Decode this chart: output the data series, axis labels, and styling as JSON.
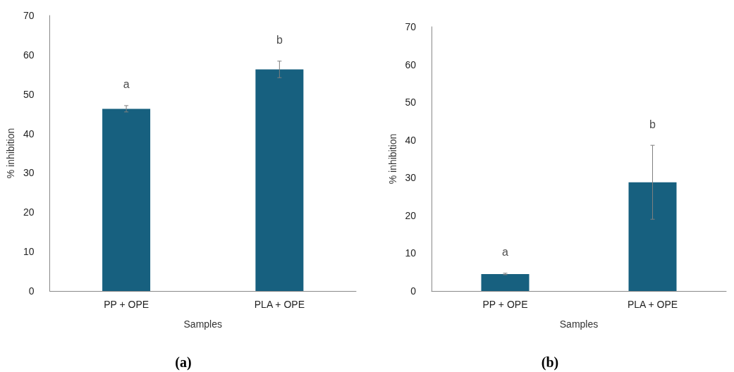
{
  "chart_data": [
    {
      "type": "bar",
      "xlabel": "Samples",
      "ylabel": "% inhibition",
      "categories": [
        "PP + OPE",
        "PLA + OPE"
      ],
      "values": [
        46.3,
        56.3
      ],
      "errors": [
        0.8,
        2.1
      ],
      "color": "#17607f",
      "ylim": [
        0,
        70
      ],
      "yticks": [
        0,
        10,
        20,
        30,
        40,
        50,
        60,
        70
      ],
      "grid": false,
      "annotations": [
        "a",
        "b",
        "(a)"
      ]
    },
    {
      "type": "bar",
      "xlabel": "Samples",
      "ylabel": "% inhibition",
      "categories": [
        "PP + OPE",
        "PLA + OPE"
      ],
      "values": [
        4.5,
        28.8
      ],
      "errors": [
        0.2,
        9.8
      ],
      "color": "#17607f",
      "ylim": [
        0,
        70
      ],
      "yticks": [
        0,
        10,
        20,
        30,
        40,
        50,
        60,
        70
      ],
      "grid": false,
      "annotations": [
        "a",
        "b",
        "(b)"
      ]
    }
  ]
}
